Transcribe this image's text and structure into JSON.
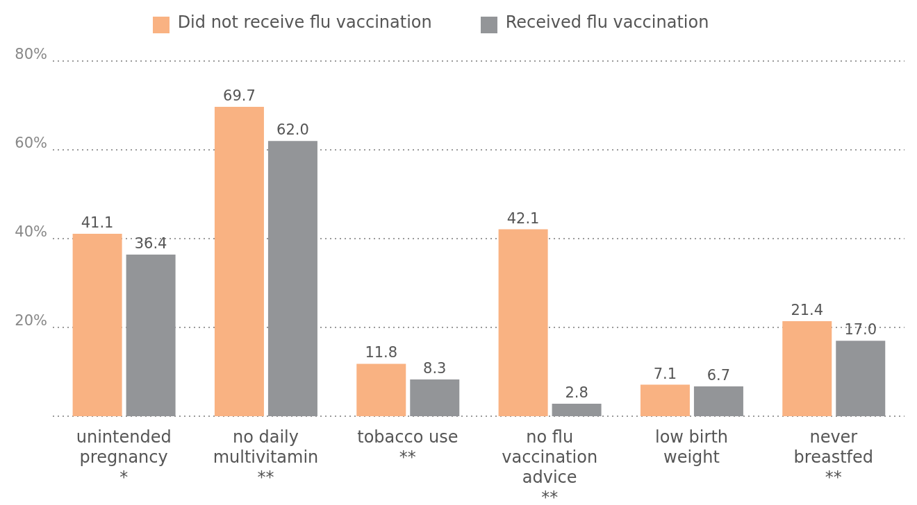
{
  "chart_data": {
    "type": "bar",
    "categories": [
      "unintended\npregnancy\n*",
      "no daily\nmultivitamin\n**",
      "tobacco use\n**",
      "no flu\nvaccination\nadvice\n**",
      "low birth\nweight",
      "never\nbreastfed\n**"
    ],
    "series": [
      {
        "name": "Did not receive flu vaccination",
        "color": "#f9b282",
        "values": [
          41.1,
          69.7,
          11.8,
          42.1,
          7.1,
          21.4
        ],
        "value_labels": [
          "41.1",
          "69.7",
          "11.8",
          "42.1",
          "7.1",
          "21.4"
        ]
      },
      {
        "name": "Received flu vaccination",
        "color": "#939598",
        "values": [
          36.4,
          62.0,
          8.3,
          2.8,
          6.7,
          17.0
        ],
        "value_labels": [
          "36.4",
          "62.0",
          "8.3",
          "2.8",
          "6.7",
          "17.0"
        ]
      }
    ],
    "ylim": [
      0,
      80
    ],
    "yticks": [
      {
        "value": 0,
        "label": null
      },
      {
        "value": 20,
        "label": "20%"
      },
      {
        "value": 40,
        "label": "40%"
      },
      {
        "value": 60,
        "label": "60%"
      },
      {
        "value": 80,
        "label": "80%"
      }
    ],
    "grid": "y",
    "legend": "top"
  }
}
